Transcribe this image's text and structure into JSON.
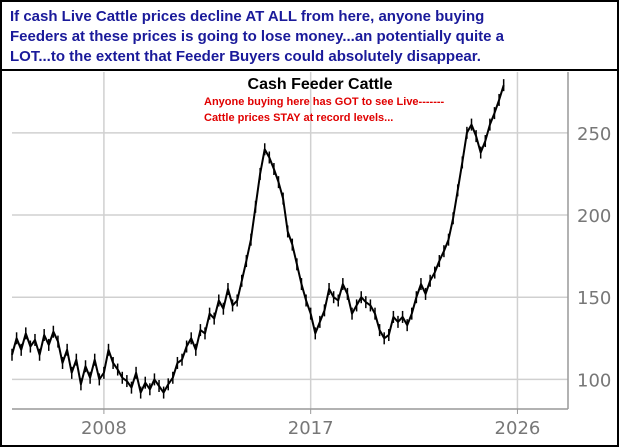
{
  "banner": {
    "lines": [
      "If cash Live Cattle prices decline AT ALL from here, anyone buying",
      "Feeders at these prices is going to lose money...an potentially quite a",
      "LOT...to the extent that Feeder Buyers could absolutely disappear."
    ],
    "color": "#1a1a9a"
  },
  "chart_data": {
    "type": "line",
    "title": "Cash Feeder Cattle",
    "annotation_lines": [
      "Anyone buying here has GOT to see Live-------",
      "Cattle prices STAY at record levels..."
    ],
    "annotation_color": "#e00000",
    "xlabel": "",
    "ylabel": "",
    "x_ticks": [
      "2008",
      "2017",
      "2026"
    ],
    "x_tick_values": [
      2008,
      2017,
      2026
    ],
    "y_ticks": [
      "100",
      "150",
      "200",
      "250"
    ],
    "y_tick_values": [
      100,
      150,
      200,
      250
    ],
    "xlim": [
      2004.0,
      2028.2
    ],
    "ylim": [
      82,
      287
    ],
    "grid": true,
    "line_color": "#000000",
    "series": [
      {
        "x": [
          2004.0,
          2004.2,
          2004.4,
          2004.6,
          2004.8,
          2005.0,
          2005.2,
          2005.4,
          2005.6,
          2005.8,
          2006.0,
          2006.2,
          2006.4,
          2006.6,
          2006.8,
          2007.0,
          2007.2,
          2007.4,
          2007.6,
          2007.8,
          2008.0,
          2008.2,
          2008.4,
          2008.6,
          2008.8,
          2009.0,
          2009.2,
          2009.4,
          2009.6,
          2009.8,
          2010.0,
          2010.2,
          2010.4,
          2010.6,
          2010.8,
          2011.0,
          2011.2,
          2011.4,
          2011.6,
          2011.8,
          2012.0,
          2012.2,
          2012.4,
          2012.6,
          2012.8,
          2013.0,
          2013.2,
          2013.4,
          2013.6,
          2013.8,
          2014.0,
          2014.2,
          2014.4,
          2014.6,
          2014.8,
          2015.0,
          2015.2,
          2015.4,
          2015.6,
          2015.8,
          2016.0,
          2016.2,
          2016.4,
          2016.6,
          2016.8,
          2017.0,
          2017.2,
          2017.4,
          2017.6,
          2017.8,
          2018.0,
          2018.2,
          2018.4,
          2018.6,
          2018.8,
          2019.0,
          2019.2,
          2019.4,
          2019.6,
          2019.8,
          2020.0,
          2020.2,
          2020.4,
          2020.6,
          2020.8,
          2021.0,
          2021.2,
          2021.4,
          2021.6,
          2021.8,
          2022.0,
          2022.2,
          2022.4,
          2022.6,
          2022.8,
          2023.0,
          2023.2,
          2023.4,
          2023.6,
          2023.8,
          2024.0,
          2024.2,
          2024.4,
          2024.6,
          2024.8,
          2025.0,
          2025.2,
          2025.4
        ],
        "y": [
          115,
          125,
          118,
          128,
          120,
          124,
          115,
          127,
          121,
          129,
          123,
          110,
          118,
          104,
          112,
          97,
          108,
          101,
          112,
          100,
          104,
          118,
          110,
          106,
          101,
          99,
          95,
          104,
          92,
          98,
          94,
          100,
          96,
          92,
          97,
          101,
          110,
          112,
          120,
          125,
          118,
          130,
          128,
          140,
          137,
          148,
          143,
          155,
          145,
          148,
          160,
          172,
          185,
          205,
          225,
          240,
          235,
          228,
          220,
          210,
          190,
          182,
          170,
          158,
          148,
          140,
          128,
          135,
          142,
          155,
          150,
          148,
          158,
          152,
          140,
          145,
          150,
          147,
          145,
          140,
          130,
          125,
          127,
          138,
          135,
          138,
          133,
          140,
          150,
          158,
          152,
          160,
          165,
          172,
          178,
          185,
          198,
          215,
          232,
          250,
          255,
          248,
          238,
          245,
          255,
          262,
          270,
          279
        ]
      }
    ]
  }
}
